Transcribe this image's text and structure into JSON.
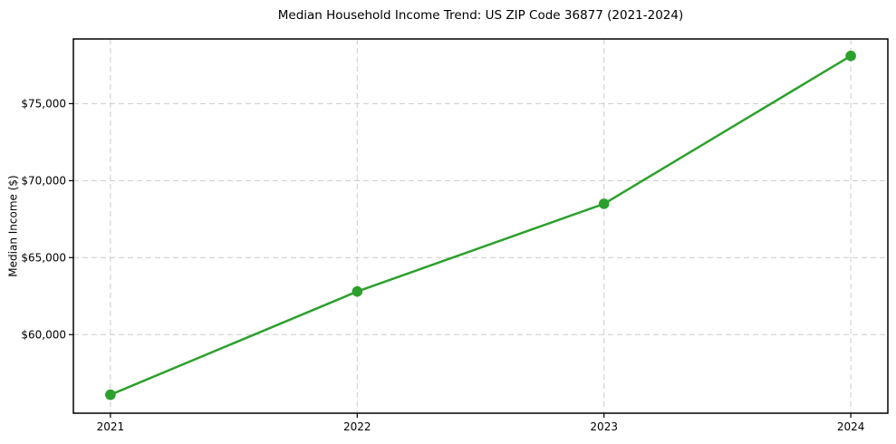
{
  "chart_data": {
    "type": "line",
    "title": "Median Household Income Trend: US ZIP Code 36877 (2021-2024)",
    "xlabel": "",
    "ylabel": "Median Income ($)",
    "x": [
      2021,
      2022,
      2023,
      2024
    ],
    "x_tick_labels": [
      "2021",
      "2022",
      "2023",
      "2024"
    ],
    "values": [
      56100,
      62800,
      68500,
      78100
    ],
    "y_ticks": [
      60000,
      65000,
      70000,
      75000
    ],
    "y_tick_labels": [
      "$60,000",
      "$65,000",
      "$70,000",
      "$75,000"
    ],
    "xlim": [
      2020.85,
      2024.15
    ],
    "ylim": [
      54900,
      79200
    ],
    "grid": true,
    "grid_style": "dashed",
    "legend_position": "none",
    "line_color": "#2ca02c",
    "marker": "circle",
    "marker_radius": 5.8,
    "marker_color": "#2ca02c",
    "grid_color": "#cccccc",
    "axis_color": "#000000",
    "background_color": "#ffffff"
  }
}
